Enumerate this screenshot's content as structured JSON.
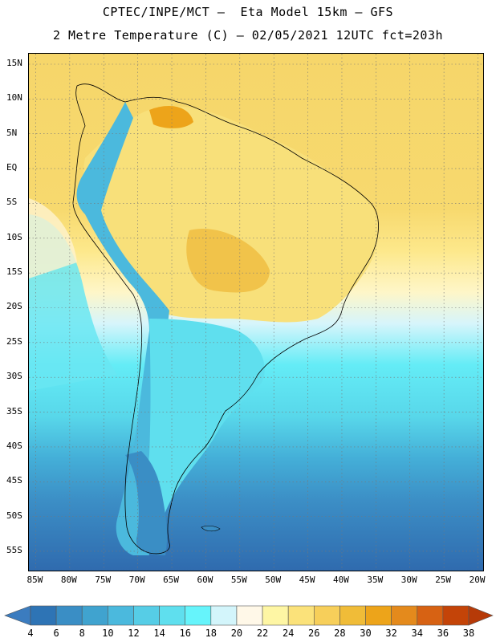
{
  "title": {
    "line1": "CPTEC/INPE/MCT –  Eta Model 15km – GFS",
    "line2": "2 Metre Temperature (C) – 02/05/2021 12UTC fct=203h"
  },
  "map": {
    "region": "South America",
    "variable": "2 Metre Temperature",
    "units": "C",
    "lon_range": [
      -86,
      -19
    ],
    "lat_range": [
      16.5,
      -58
    ],
    "lat_ticks": [
      "15N",
      "10N",
      "5N",
      "EQ",
      "5S",
      "10S",
      "15S",
      "20S",
      "25S",
      "30S",
      "35S",
      "40S",
      "45S",
      "50S",
      "55S"
    ],
    "lat_values": [
      15,
      10,
      5,
      0,
      -5,
      -10,
      -15,
      -20,
      -25,
      -30,
      -35,
      -40,
      -45,
      -50,
      -55
    ],
    "lon_ticks": [
      "85W",
      "80W",
      "75W",
      "70W",
      "65W",
      "60W",
      "55W",
      "50W",
      "45W",
      "40W",
      "35W",
      "30W",
      "25W",
      "20W"
    ],
    "lon_values": [
      -85,
      -80,
      -75,
      -70,
      -65,
      -60,
      -55,
      -50,
      -45,
      -40,
      -35,
      -30,
      -25,
      -20
    ]
  },
  "colorbar": {
    "labels": [
      "4",
      "6",
      "8",
      "10",
      "12",
      "14",
      "16",
      "18",
      "20",
      "22",
      "24",
      "26",
      "28",
      "30",
      "32",
      "34",
      "36",
      "38"
    ],
    "levels": [
      4,
      6,
      8,
      10,
      12,
      14,
      16,
      18,
      20,
      22,
      24,
      26,
      28,
      30,
      32,
      34,
      36,
      38
    ],
    "colors": [
      "#3b7cbf",
      "#2e74b5",
      "#3a8ec5",
      "#40a3cf",
      "#4bb9dd",
      "#56cde6",
      "#5fdfee",
      "#66f4fb",
      "#d3f5fb",
      "#fff8e8",
      "#fef6a4",
      "#fbe27a",
      "#f7cf5a",
      "#f0bc38",
      "#eda41a",
      "#e48a1c",
      "#d76213",
      "#c44408",
      "#b63a08"
    ]
  }
}
